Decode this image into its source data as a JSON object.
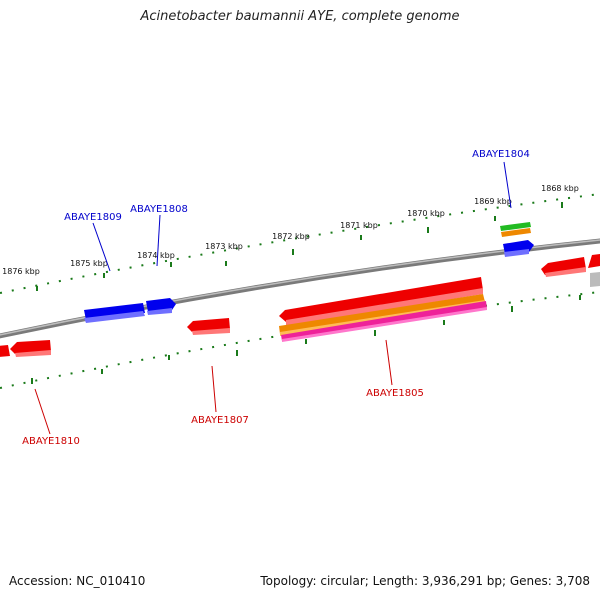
{
  "title": "Acinetobacter baumannii AYE, complete genome",
  "footer": {
    "accession": "Accession: NC_010410",
    "summary": "Topology: circular; Length: 3,936,291 bp; Genes: 3,708"
  },
  "ticks": [
    {
      "label": "1868 kbp"
    },
    {
      "label": "1869 kbp"
    },
    {
      "label": "1870 kbp"
    },
    {
      "label": "1871 kbp"
    },
    {
      "label": "1872 kbp"
    },
    {
      "label": "1873 kbp"
    },
    {
      "label": "1874 kbp"
    },
    {
      "label": "1875 kbp"
    },
    {
      "label": "1876 kbp"
    }
  ],
  "genes": [
    {
      "label": "ABAYE1804",
      "strand": "forward",
      "color": "#0000cc"
    },
    {
      "label": "ABAYE1805",
      "strand": "reverse",
      "color": "#cc0000"
    },
    {
      "label": "ABAYE1807",
      "strand": "reverse",
      "color": "#cc0000"
    },
    {
      "label": "ABAYE1808",
      "strand": "forward",
      "color": "#0000cc"
    },
    {
      "label": "ABAYE1809",
      "strand": "forward",
      "color": "#0000cc"
    },
    {
      "label": "ABAYE1810",
      "strand": "reverse",
      "color": "#cc0000"
    }
  ],
  "colors": {
    "backbone": "#888888",
    "tick": "#1a7a1a",
    "gene_red": "#ee0000",
    "gene_blue": "#0000ee",
    "gene_orange": "#ee8800",
    "gene_magenta": "#ee2299",
    "gene_green": "#22bb22",
    "gene_gray": "#bbbbbb"
  }
}
